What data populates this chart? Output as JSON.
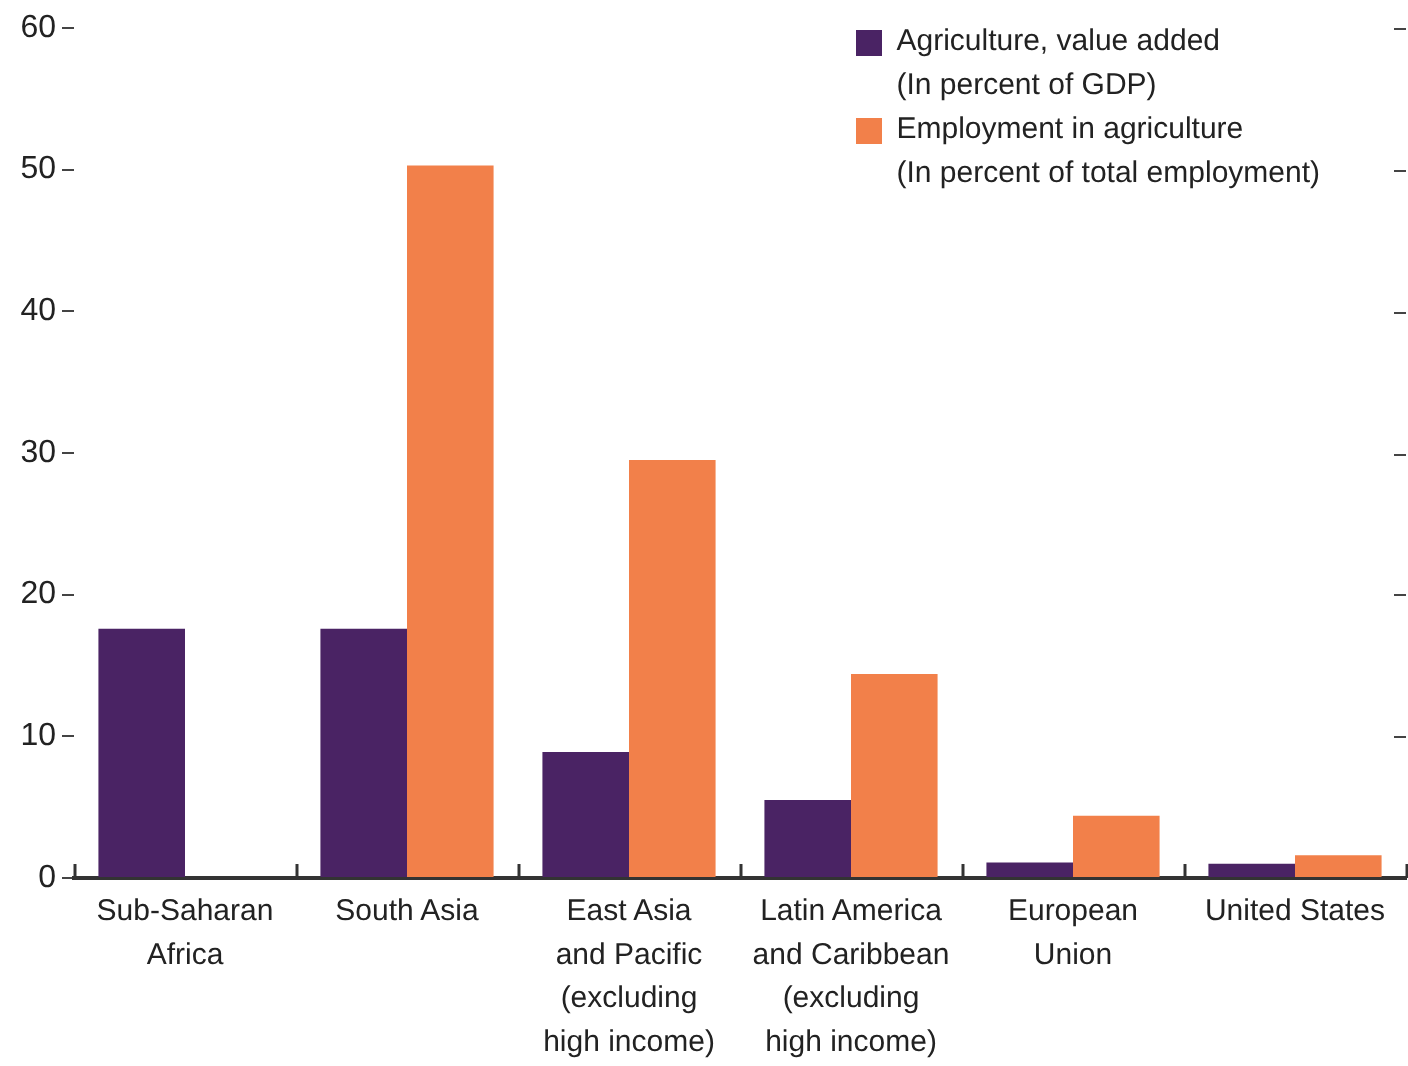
{
  "chart_data": {
    "type": "bar",
    "categories": [
      "Sub-Saharan\nAfrica",
      "South Asia",
      "East Asia\nand Pacific\n(excluding\nhigh income)",
      "Latin America\nand Caribbean\n(excluding\nhigh income)",
      "European\nUnion",
      "United States"
    ],
    "series": [
      {
        "name": "Agriculture, value added\n(In percent of GDP)",
        "color": "#4a2364",
        "values": [
          17.6,
          17.6,
          8.9,
          5.5,
          1.1,
          1.0
        ]
      },
      {
        "name": "Employment in agriculture\n(In percent of total employment)",
        "color": "#f2804a",
        "values": [
          null,
          50.3,
          29.5,
          14.4,
          4.4,
          1.6
        ]
      }
    ],
    "ylim": [
      0,
      60
    ],
    "yticks": [
      0,
      10,
      20,
      30,
      40,
      50,
      60
    ],
    "legend": "top right"
  }
}
